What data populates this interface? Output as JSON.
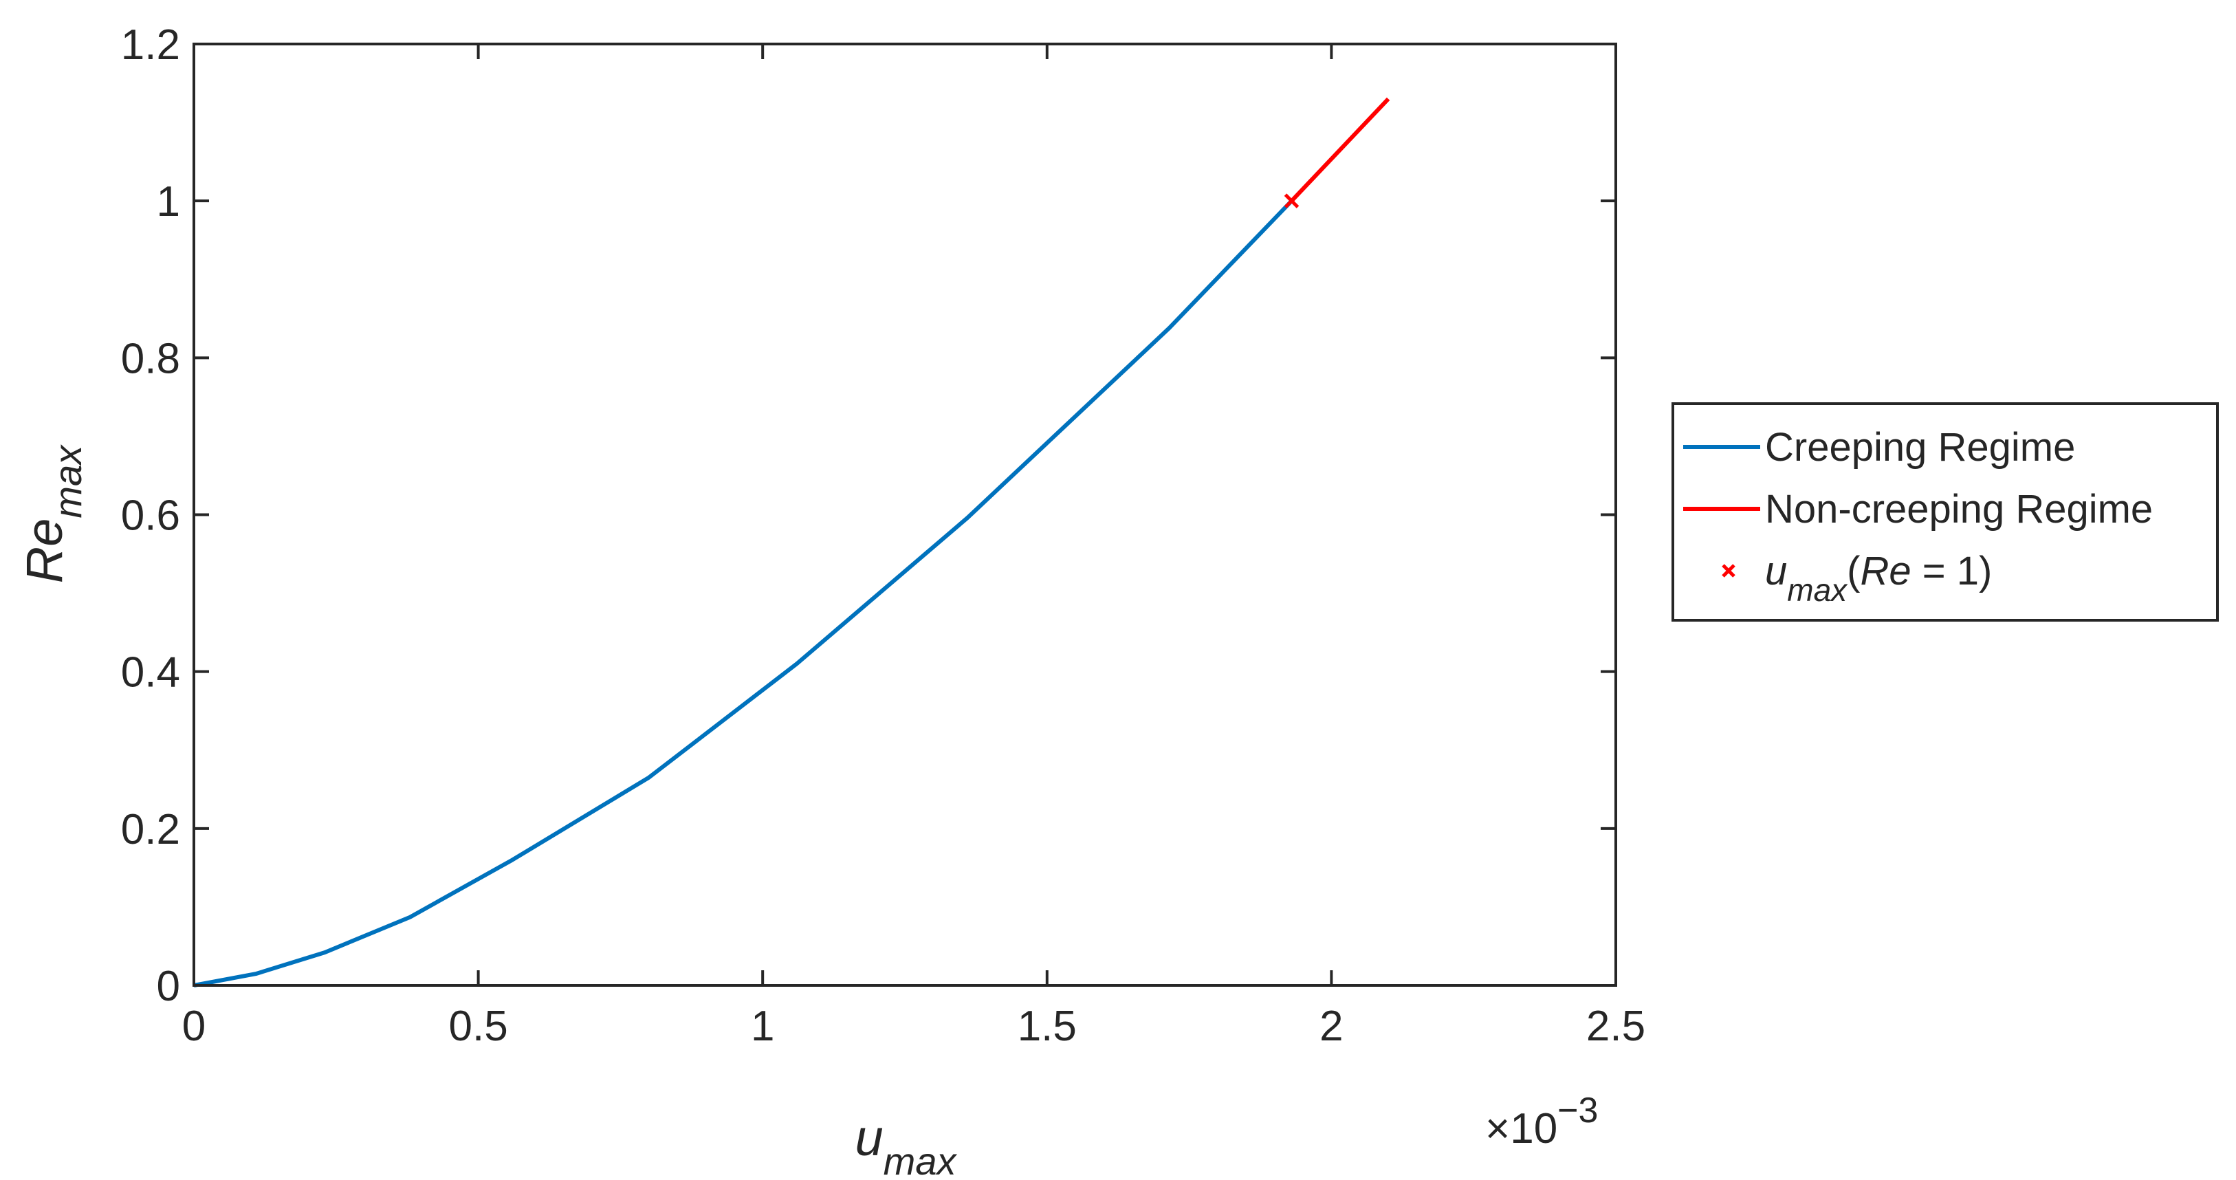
{
  "chart_data": {
    "type": "line",
    "xlabel": [
      "u",
      "max"
    ],
    "ylabel": [
      "Re",
      "max"
    ],
    "x_exponent": [
      "×10",
      "−3"
    ],
    "xlim": [
      0,
      2.5
    ],
    "ylim": [
      0,
      1.2
    ],
    "xticks": [
      0,
      0.5,
      1,
      1.5,
      2,
      2.5
    ],
    "yticks": [
      0,
      0.2,
      0.4,
      0.6,
      0.8,
      1,
      1.2
    ],
    "grid": false,
    "legend": "outside right",
    "series": [
      {
        "name": "Creeping Regime",
        "color": "#0072bd",
        "marker": "none",
        "x": [
          0,
          0.11,
          0.23,
          0.38,
          0.56,
          0.8,
          1.06,
          1.36,
          1.715,
          1.93
        ],
        "values": [
          0,
          0.015,
          0.042,
          0.087,
          0.16,
          0.265,
          0.41,
          0.596,
          0.838,
          1.0
        ]
      },
      {
        "name": "Non-creeping Regime",
        "color": "#ff0000",
        "marker": "none",
        "x": [
          1.93,
          2.1
        ],
        "values": [
          1.0,
          1.13
        ]
      },
      {
        "name": [
          "u",
          "max",
          "(",
          "Re",
          " = 1)"
        ],
        "color": "#ff0000",
        "marker": "x",
        "x": [
          1.93
        ],
        "values": [
          1.0
        ]
      }
    ]
  }
}
